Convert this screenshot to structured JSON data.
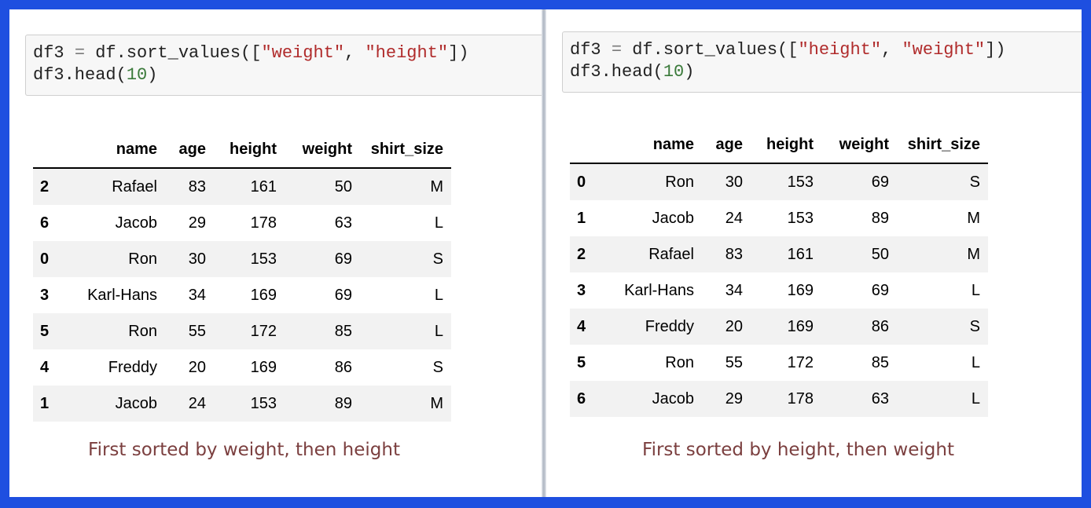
{
  "columns": [
    "",
    "name",
    "age",
    "height",
    "weight",
    "shirt_size"
  ],
  "left": {
    "code": {
      "line1": {
        "a": "df3 ",
        "eq": "=",
        "b": " df.sort_values([",
        "s1": "\"weight\"",
        "c": ", ",
        "s2": "\"height\"",
        "d": "])"
      },
      "line2": {
        "a": "df3.head(",
        "n": "10",
        "b": ")"
      }
    },
    "rows": [
      {
        "idx": "2",
        "name": "Rafael",
        "age": "83",
        "height": "161",
        "weight": "50",
        "shirt_size": "M"
      },
      {
        "idx": "6",
        "name": "Jacob",
        "age": "29",
        "height": "178",
        "weight": "63",
        "shirt_size": "L"
      },
      {
        "idx": "0",
        "name": "Ron",
        "age": "30",
        "height": "153",
        "weight": "69",
        "shirt_size": "S"
      },
      {
        "idx": "3",
        "name": "Karl-Hans",
        "age": "34",
        "height": "169",
        "weight": "69",
        "shirt_size": "L"
      },
      {
        "idx": "5",
        "name": "Ron",
        "age": "55",
        "height": "172",
        "weight": "85",
        "shirt_size": "L"
      },
      {
        "idx": "4",
        "name": "Freddy",
        "age": "20",
        "height": "169",
        "weight": "86",
        "shirt_size": "S"
      },
      {
        "idx": "1",
        "name": "Jacob",
        "age": "24",
        "height": "153",
        "weight": "89",
        "shirt_size": "M"
      }
    ],
    "caption": "First sorted by weight, then height"
  },
  "right": {
    "code": {
      "line1": {
        "a": "df3 ",
        "eq": "=",
        "b": " df.sort_values([",
        "s1": "\"height\"",
        "c": ", ",
        "s2": "\"weight\"",
        "d": "])"
      },
      "line2": {
        "a": "df3.head(",
        "n": "10",
        "b": ")"
      }
    },
    "rows": [
      {
        "idx": "0",
        "name": "Ron",
        "age": "30",
        "height": "153",
        "weight": "69",
        "shirt_size": "S"
      },
      {
        "idx": "1",
        "name": "Jacob",
        "age": "24",
        "height": "153",
        "weight": "89",
        "shirt_size": "M"
      },
      {
        "idx": "2",
        "name": "Rafael",
        "age": "83",
        "height": "161",
        "weight": "50",
        "shirt_size": "M"
      },
      {
        "idx": "3",
        "name": "Karl-Hans",
        "age": "34",
        "height": "169",
        "weight": "69",
        "shirt_size": "L"
      },
      {
        "idx": "4",
        "name": "Freddy",
        "age": "20",
        "height": "169",
        "weight": "86",
        "shirt_size": "S"
      },
      {
        "idx": "5",
        "name": "Ron",
        "age": "55",
        "height": "172",
        "weight": "85",
        "shirt_size": "L"
      },
      {
        "idx": "6",
        "name": "Jacob",
        "age": "29",
        "height": "178",
        "weight": "63",
        "shirt_size": "L"
      }
    ],
    "caption": "First sorted by height, then weight"
  }
}
